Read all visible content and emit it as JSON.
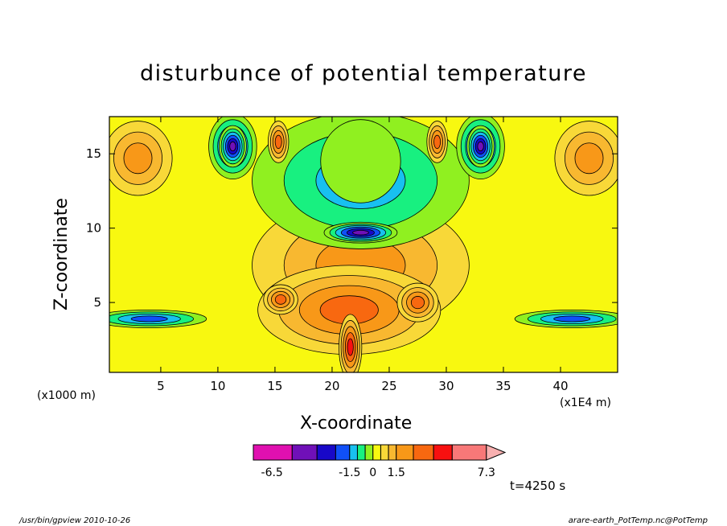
{
  "figure": {
    "title": "disturbunce of potential temperature",
    "x_unit": "(x1000 m)",
    "x_unit_right": "(x1E4 m)",
    "x_title": "X-coordinate",
    "z_title": "Z-coordinate",
    "time_label": "t=4250 s",
    "footer_left": "/usr/bin/gpview   2010-10-26",
    "footer_right": "arare-earth_PotTemp.nc@PotTemp"
  },
  "chart_data": {
    "type": "heatmap",
    "title": "disturbunce of potential temperature",
    "xlabel": "X-coordinate",
    "ylabel": "Z-coordinate",
    "x_ticks": [
      5,
      10,
      15,
      20,
      25,
      30,
      35,
      40
    ],
    "z_ticks": [
      5,
      10,
      15
    ],
    "xlim": [
      0.5,
      45
    ],
    "zlim": [
      0.3,
      17.5
    ],
    "colorbar": {
      "tick_labels": [
        "-6.5",
        "-1.5",
        "0",
        "1.5",
        "7.3"
      ],
      "tick_values": [
        -6.5,
        -1.5,
        0,
        1.5,
        7.3
      ],
      "segments": [
        {
          "from": -7.7,
          "to": -5.2,
          "color": "#e010b0"
        },
        {
          "from": -5.2,
          "to": -3.6,
          "color": "#7010b8"
        },
        {
          "from": -3.6,
          "to": -2.4,
          "color": "#1808c8"
        },
        {
          "from": -2.4,
          "to": -1.5,
          "color": "#1050f8"
        },
        {
          "from": -1.5,
          "to": -1.0,
          "color": "#18c0f0"
        },
        {
          "from": -1.0,
          "to": -0.5,
          "color": "#18f080"
        },
        {
          "from": -0.5,
          "to": 0.0,
          "color": "#90f020"
        },
        {
          "from": 0.0,
          "to": 0.5,
          "color": "#f8f810"
        },
        {
          "from": 0.5,
          "to": 1.0,
          "color": "#f8d838"
        },
        {
          "from": 1.0,
          "to": 1.5,
          "color": "#f8b830"
        },
        {
          "from": 1.5,
          "to": 2.6,
          "color": "#f89818"
        },
        {
          "from": 2.6,
          "to": 3.9,
          "color": "#f86810"
        },
        {
          "from": 3.9,
          "to": 5.1,
          "color": "#f81010"
        },
        {
          "from": 5.1,
          "to": 7.3,
          "color": "#f87878"
        },
        {
          "from": 7.3,
          "to": 8.5,
          "color": "#f8b0b0"
        }
      ]
    },
    "features": [
      {
        "x": 3,
        "z": 14.7,
        "rx": 3.0,
        "rz": 2.5,
        "value": 1.6
      },
      {
        "x": 42.5,
        "z": 14.7,
        "rx": 3.0,
        "rz": 2.5,
        "value": 1.6
      },
      {
        "x": 22.5,
        "z": 7.5,
        "rx": 9.5,
        "rz": 4.5,
        "value": 1.6
      },
      {
        "x": 21.5,
        "z": 4.5,
        "rx": 8.0,
        "rz": 3.0,
        "value": 2.8
      },
      {
        "x": 15.5,
        "z": 5.2,
        "rx": 1.5,
        "rz": 1.0,
        "value": 2.8
      },
      {
        "x": 27.5,
        "z": 5.0,
        "rx": 1.8,
        "rz": 1.3,
        "value": 2.8
      },
      {
        "x": 4,
        "z": 3.9,
        "rx": 5.0,
        "rz": 0.6,
        "value": -1.8
      },
      {
        "x": 41,
        "z": 3.9,
        "rx": 5.0,
        "rz": 0.6,
        "value": -1.8
      },
      {
        "x": 22.5,
        "z": 13.2,
        "rx": 9.5,
        "rz": 4.6,
        "value": -1.2
      },
      {
        "x": 11.3,
        "z": 15.5,
        "rx": 2.1,
        "rz": 2.2,
        "value": -2.8
      },
      {
        "x": 33.0,
        "z": 15.5,
        "rx": 2.1,
        "rz": 2.2,
        "value": -2.8
      },
      {
        "x": 11.3,
        "z": 15.5,
        "rx": 1.2,
        "rz": 1.4,
        "value": -4.5
      },
      {
        "x": 33.0,
        "z": 15.5,
        "rx": 1.2,
        "rz": 1.4,
        "value": -4.5
      },
      {
        "x": 22.5,
        "z": 9.7,
        "rx": 3.2,
        "rz": 0.7,
        "value": -4.5
      },
      {
        "x": 15.3,
        "z": 15.8,
        "rx": 0.9,
        "rz": 1.4,
        "value": 2.8
      },
      {
        "x": 29.2,
        "z": 15.8,
        "rx": 0.9,
        "rz": 1.4,
        "value": 2.8
      },
      {
        "x": 22.5,
        "z": 14.5,
        "rx": 3.5,
        "rz": 2.8,
        "value": -0.3
      },
      {
        "x": 21.6,
        "z": 2.0,
        "rx": 1.0,
        "rz": 2.2,
        "value": 4.5
      }
    ]
  }
}
